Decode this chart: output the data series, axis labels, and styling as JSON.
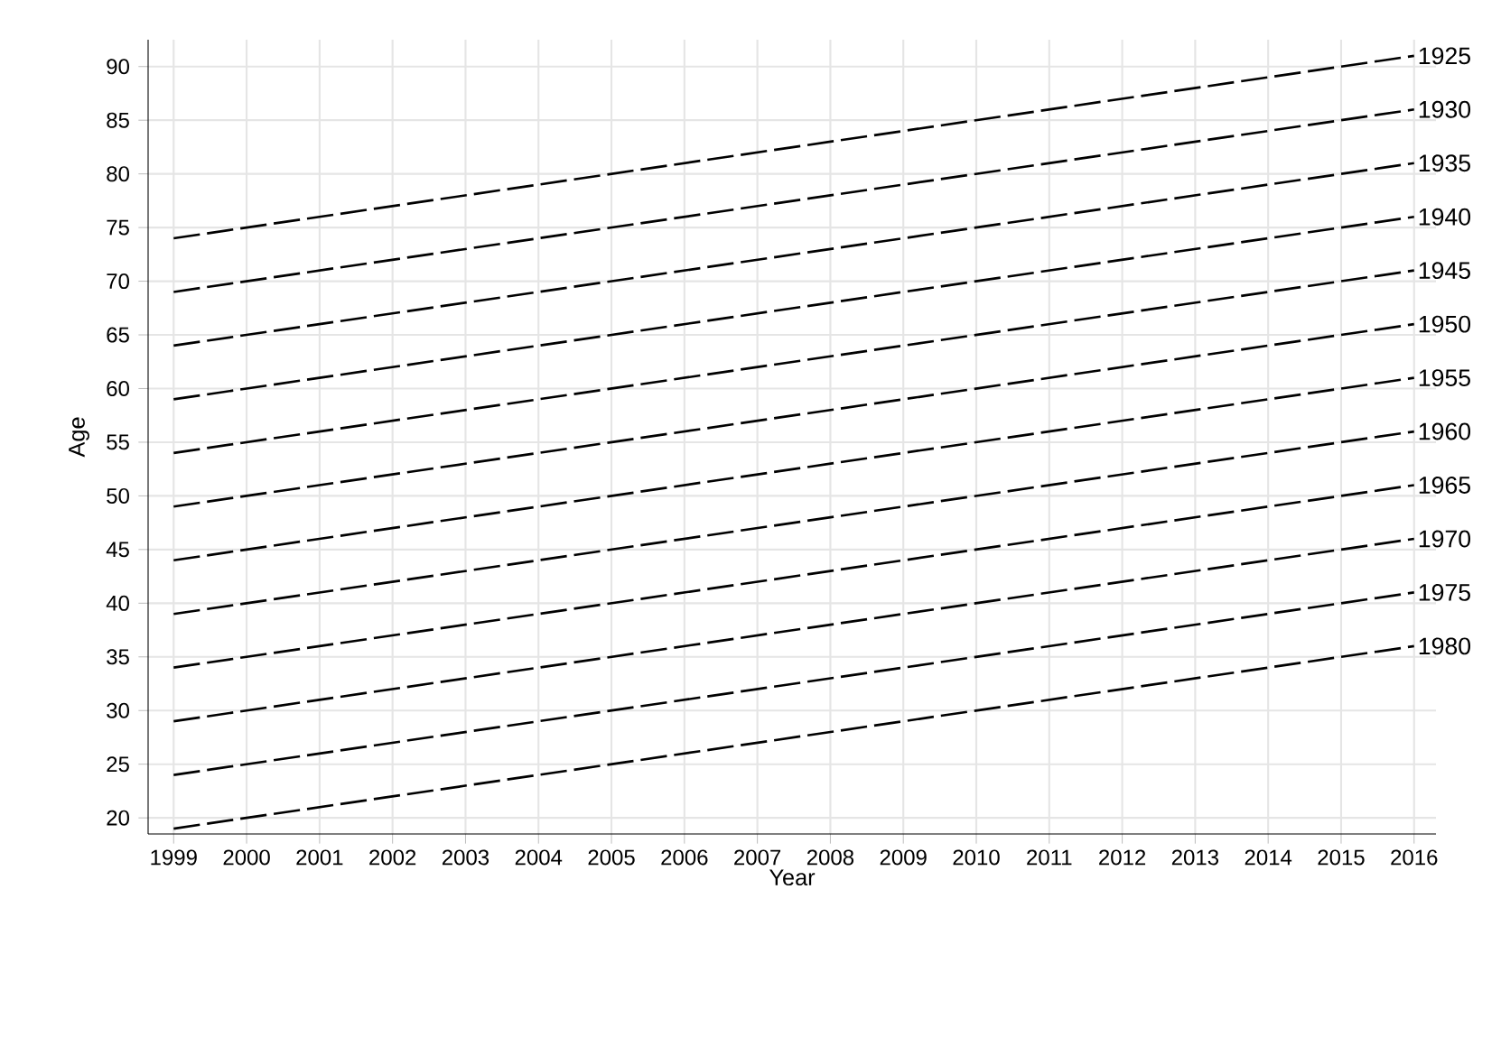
{
  "chart_data": {
    "type": "line",
    "xlabel": "Year",
    "ylabel": "Age",
    "xlim": [
      1998.65,
      2016.3
    ],
    "ylim": [
      18.5,
      92.5
    ],
    "xticks": [
      1999,
      2000,
      2001,
      2002,
      2003,
      2004,
      2005,
      2006,
      2007,
      2008,
      2009,
      2010,
      2011,
      2012,
      2013,
      2014,
      2015,
      2016
    ],
    "yticks": [
      20,
      25,
      30,
      35,
      40,
      45,
      50,
      55,
      60,
      65,
      70,
      75,
      80,
      85,
      90
    ],
    "grid": true,
    "marker": "none",
    "line_style": "dashed",
    "x": [
      1999,
      2016
    ],
    "series": [
      {
        "name": "1925",
        "color": "#000000",
        "values": [
          74,
          91
        ]
      },
      {
        "name": "1930",
        "color": "#000000",
        "values": [
          69,
          86
        ]
      },
      {
        "name": "1935",
        "color": "#000000",
        "values": [
          64,
          81
        ]
      },
      {
        "name": "1940",
        "color": "#000000",
        "values": [
          59,
          76
        ]
      },
      {
        "name": "1945",
        "color": "#000000",
        "values": [
          54,
          71
        ]
      },
      {
        "name": "1950",
        "color": "#000000",
        "values": [
          49,
          66
        ]
      },
      {
        "name": "1955",
        "color": "#000000",
        "values": [
          44,
          61
        ]
      },
      {
        "name": "1960",
        "color": "#000000",
        "values": [
          39,
          56
        ]
      },
      {
        "name": "1965",
        "color": "#000000",
        "values": [
          34,
          51
        ]
      },
      {
        "name": "1970",
        "color": "#000000",
        "values": [
          29,
          46
        ]
      },
      {
        "name": "1975",
        "color": "#000000",
        "values": [
          24,
          41
        ]
      },
      {
        "name": "1980",
        "color": "#000000",
        "values": [
          19,
          36
        ]
      }
    ]
  }
}
